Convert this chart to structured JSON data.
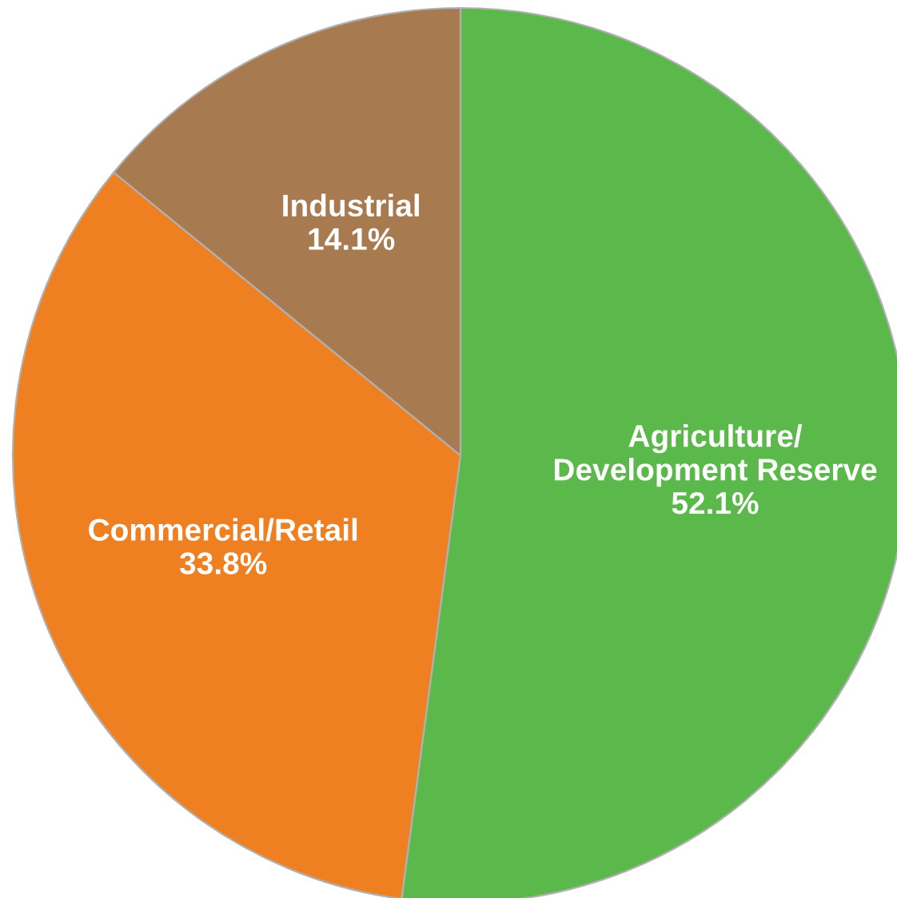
{
  "chart_data": {
    "type": "pie",
    "categories": [
      "Agriculture/\nDevelopment Reserve",
      "Commercial/Retail",
      "Industrial"
    ],
    "values": [
      52.1,
      33.8,
      14.1
    ],
    "colors": [
      "#5ab94a",
      "#ef8022",
      "#a87a50"
    ],
    "value_labels": [
      "52.1%",
      "33.8%",
      "14.1%"
    ]
  }
}
